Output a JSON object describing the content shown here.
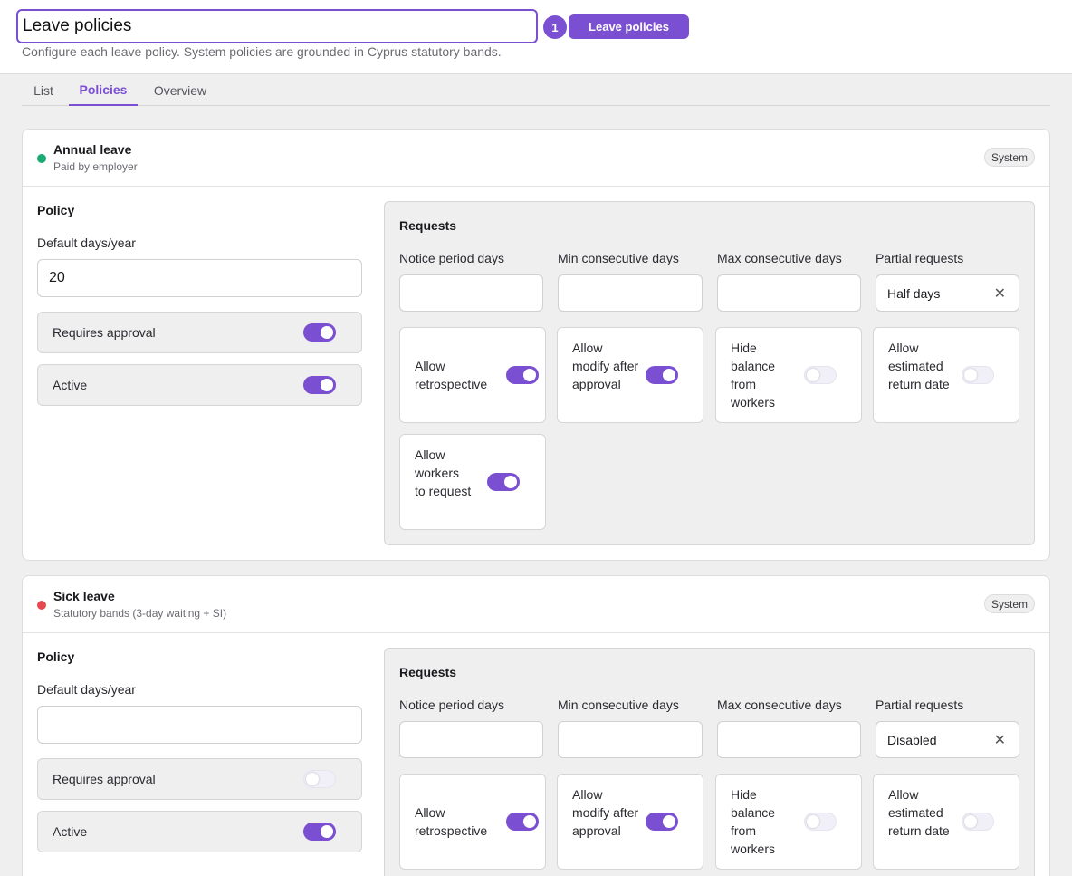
{
  "header": {
    "title_value": "Leave policies",
    "badge_count": "1",
    "pill_label": "Leave policies",
    "subtitle": "Configure each leave policy. System policies are grounded in Cyprus statutory bands."
  },
  "tabs": [
    {
      "label": "List",
      "active": false
    },
    {
      "label": "Policies",
      "active": true
    },
    {
      "label": "Overview",
      "active": false
    }
  ],
  "colors": {
    "accent": "#7b4fd1",
    "annual_dot": "#1aaa72",
    "sick_dot": "#e5484d"
  },
  "policies": [
    {
      "name": "Annual leave",
      "description": "Paid by employer",
      "badge": "System",
      "policy_label": "Policy",
      "default_days_label": "Default days/year",
      "default_days_value": "20",
      "requires_approval_label": "Requires approval",
      "requires_approval": true,
      "active_label": "Active",
      "active": true,
      "requests": {
        "title": "Requests",
        "notice_label": "Notice period days",
        "min_label": "Min consecutive days",
        "max_label": "Max consecutive days",
        "partial_label": "Partial requests",
        "partial_value": "Half days",
        "options": [
          {
            "label": "Allow retrospective",
            "on": true
          },
          {
            "label": "Allow modify after approval",
            "on": true
          },
          {
            "label": "Hide balance from workers",
            "on": false
          },
          {
            "label": "Allow estimated return date",
            "on": false
          },
          {
            "label": "Allow workers to request",
            "on": true
          }
        ]
      }
    },
    {
      "name": "Sick leave",
      "description": "Statutory bands (3-day waiting + SI)",
      "badge": "System",
      "policy_label": "Policy",
      "default_days_label": "Default days/year",
      "default_days_value": "",
      "requires_approval_label": "Requires approval",
      "requires_approval": false,
      "active_label": "Active",
      "active": true,
      "requests": {
        "title": "Requests",
        "notice_label": "Notice period days",
        "min_label": "Min consecutive days",
        "max_label": "Max consecutive days",
        "partial_label": "Partial requests",
        "partial_value": "Disabled",
        "options": [
          {
            "label": "Allow retrospective",
            "on": true
          },
          {
            "label": "Allow modify after approval",
            "on": true
          },
          {
            "label": "Hide balance from workers",
            "on": false
          },
          {
            "label": "Allow estimated return date",
            "on": false
          }
        ]
      }
    }
  ]
}
